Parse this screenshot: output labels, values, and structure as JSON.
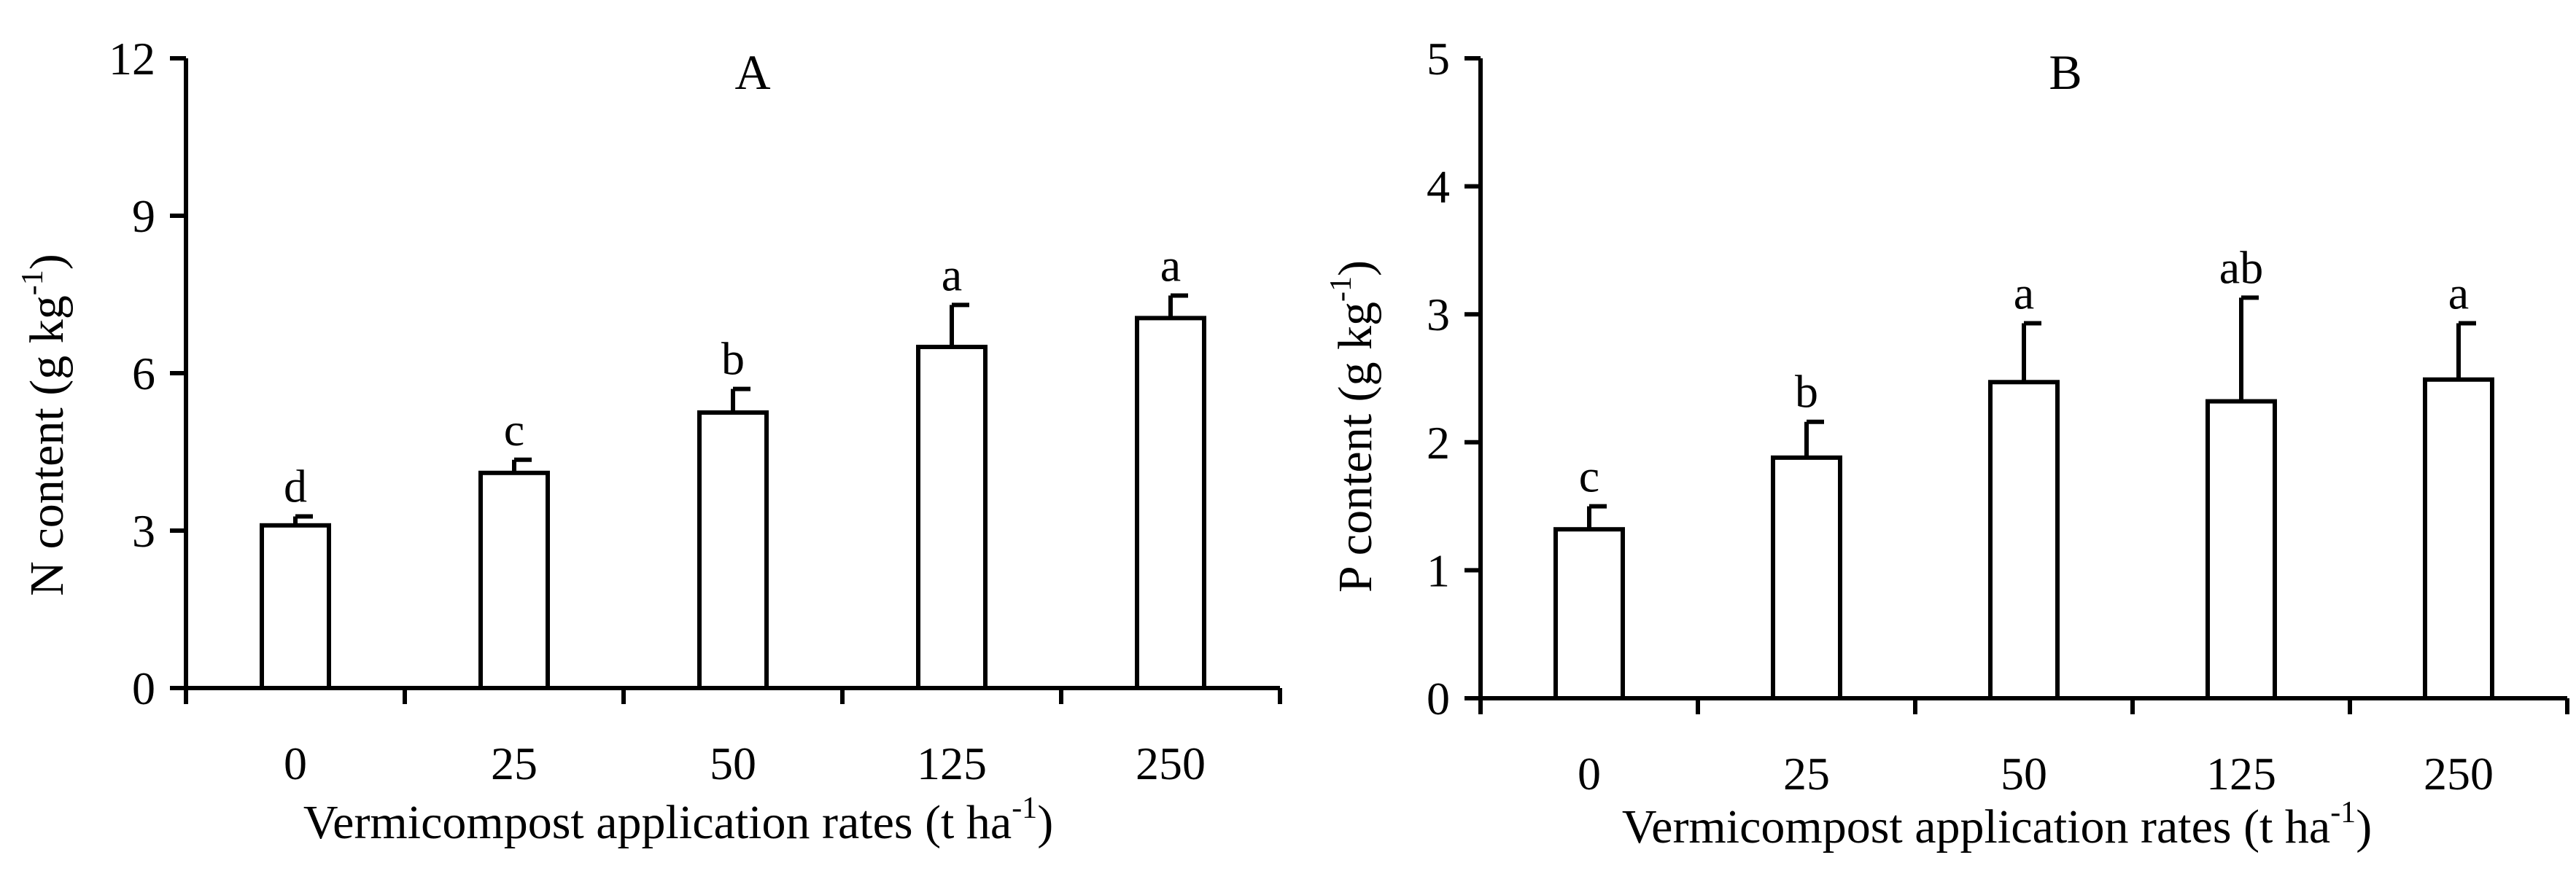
{
  "chart_data": [
    {
      "type": "bar",
      "title": "A",
      "xlabel": "Vermicompost application rates (t ha",
      "xlabel_sup": "-1",
      "xlabel_end": ")",
      "ylabel": "N content  (g kg",
      "ylabel_sup": "-1",
      "ylabel_end": ")",
      "categories": [
        "0",
        "25",
        "50",
        "125",
        "250"
      ],
      "values": [
        3.1,
        4.1,
        5.25,
        6.5,
        7.05
      ],
      "errors": [
        0.17,
        0.25,
        0.45,
        0.8,
        0.43
      ],
      "letters": [
        "d",
        "c",
        "b",
        "a",
        "a"
      ],
      "ylim": [
        0,
        12
      ],
      "yticks": [
        0,
        3,
        6,
        9,
        12
      ],
      "ytick_labels": [
        "0",
        "3",
        "6",
        "9",
        "12"
      ]
    },
    {
      "type": "bar",
      "title": "B",
      "xlabel": "Vermicompost application rates (t ha",
      "xlabel_sup": "-1",
      "xlabel_end": ")",
      "ylabel": "P content (g kg",
      "ylabel_sup": "-1",
      "ylabel_end": ")",
      "categories": [
        "0",
        "25",
        "50",
        "125",
        "250"
      ],
      "values": [
        1.32,
        1.88,
        2.47,
        2.32,
        2.49
      ],
      "errors": [
        0.18,
        0.28,
        0.46,
        0.81,
        0.44
      ],
      "letters": [
        "c",
        "b",
        "a",
        "ab",
        "a"
      ],
      "ylim": [
        0,
        5
      ],
      "yticks": [
        0,
        1,
        2,
        3,
        4,
        5
      ],
      "ytick_labels": [
        "0",
        "1",
        "2",
        "3",
        "4",
        "5"
      ]
    }
  ]
}
